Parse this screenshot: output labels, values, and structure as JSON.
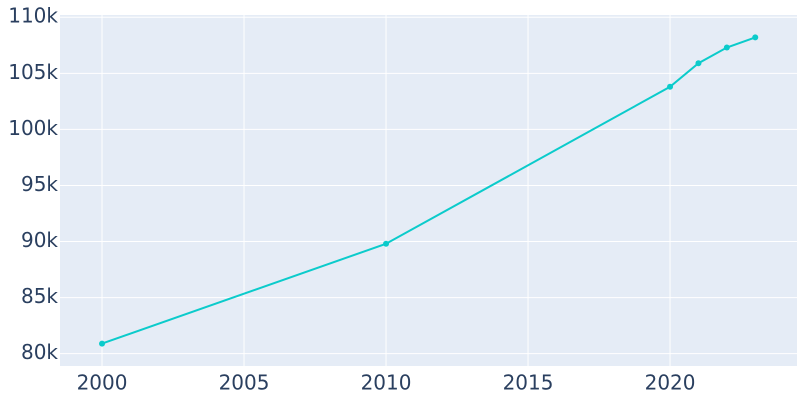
{
  "chart_data": {
    "type": "line",
    "x": [
      2000,
      2010,
      2020,
      2021,
      2022,
      2023
    ],
    "series": [
      {
        "color": "#0bcbcb",
        "values": [
          80900,
          89800,
          103800,
          105900,
          107300,
          108200
        ]
      }
    ],
    "xlim": [
      1998.52,
      2024.47
    ],
    "xticks": [
      2000,
      2005,
      2010,
      2015,
      2020
    ],
    "ylim": [
      78900,
      110200
    ],
    "yticks": [
      {
        "value": 80000,
        "label": "80k"
      },
      {
        "value": 85000,
        "label": "85k"
      },
      {
        "value": 90000,
        "label": "90k"
      },
      {
        "value": 95000,
        "label": "95k"
      },
      {
        "value": 100000,
        "label": "100k"
      },
      {
        "value": 105000,
        "label": "105k"
      },
      {
        "value": 110000,
        "label": "110k"
      }
    ],
    "grid": true,
    "background": "#e5ecf6"
  }
}
